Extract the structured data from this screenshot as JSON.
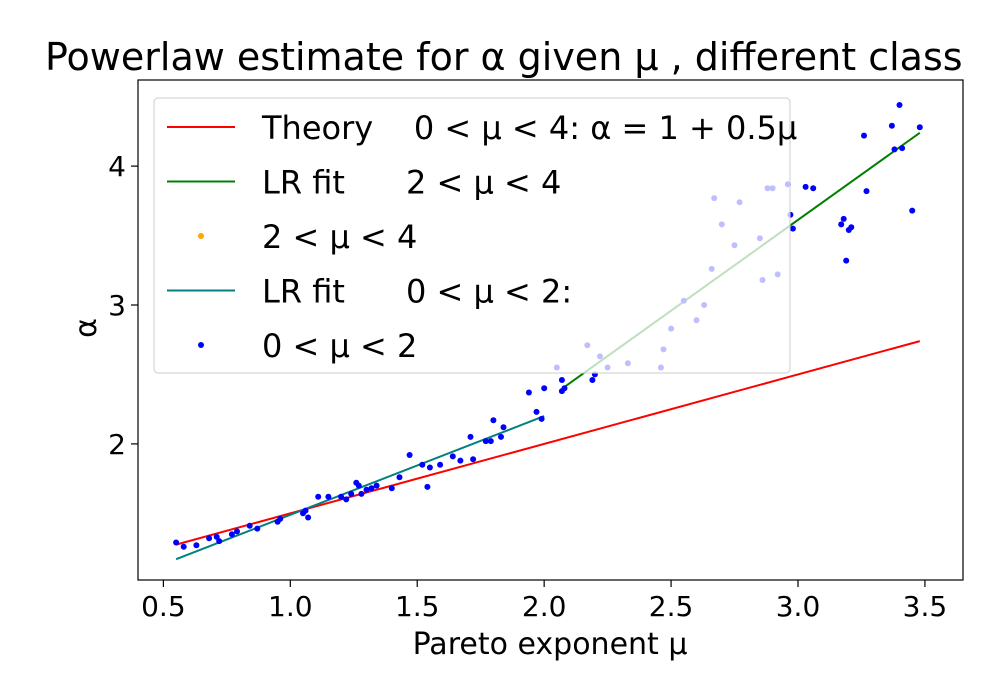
{
  "chart_data": {
    "type": "scatter",
    "title": "Powerlaw estimate for α given μ , different class",
    "xlabel": "Pareto exponent μ",
    "ylabel": "α",
    "xlim": [
      0.4,
      3.65
    ],
    "ylim": [
      1.02,
      4.62
    ],
    "xticks": [
      "0.5",
      "1.0",
      "1.5",
      "2.0",
      "2.5",
      "3.0",
      "3.5"
    ],
    "xtick_values": [
      0.5,
      1.0,
      1.5,
      2.0,
      2.5,
      3.0,
      3.5
    ],
    "yticks": [
      "2",
      "3",
      "4"
    ],
    "ytick_values": [
      2,
      3,
      4
    ],
    "legend_position": "upper-left",
    "series": [
      {
        "name": "Theory    0 < μ < 4: α = 1 + 0.5μ",
        "kind": "line",
        "color": "#ff0000",
        "x": [
          0.55,
          3.48
        ],
        "y": [
          1.275,
          2.74
        ]
      },
      {
        "name": "LR fit      2 < μ < 4",
        "kind": "line",
        "color": "#008000",
        "x": [
          2.08,
          3.48
        ],
        "y": [
          2.41,
          4.24
        ]
      },
      {
        "name": "2 < μ < 4",
        "kind": "scatter",
        "color": "#0000ff",
        "legend_marker_color": "#ffa500",
        "x": [
          2.05,
          2.07,
          2.08,
          2.17,
          2.2,
          2.22,
          2.25,
          2.33,
          2.46,
          2.47,
          2.5,
          2.55,
          2.6,
          2.63,
          2.66,
          2.67,
          2.7,
          2.75,
          2.77,
          2.85,
          2.86,
          2.88,
          2.9,
          2.92,
          2.96,
          2.97,
          2.98,
          3.03,
          3.06,
          3.17,
          3.18,
          3.19,
          3.2,
          3.21,
          3.26,
          3.27,
          3.37,
          3.38,
          3.4,
          3.41,
          3.45,
          3.48
        ],
        "y": [
          2.55,
          2.46,
          2.4,
          2.71,
          2.5,
          2.63,
          2.55,
          2.58,
          2.55,
          2.68,
          2.83,
          3.03,
          2.89,
          3.0,
          3.26,
          3.77,
          3.58,
          3.43,
          3.74,
          3.48,
          3.18,
          3.84,
          3.84,
          3.22,
          3.87,
          3.65,
          3.55,
          3.85,
          3.84,
          3.58,
          3.62,
          3.32,
          3.54,
          3.56,
          4.22,
          3.82,
          4.29,
          4.12,
          4.44,
          4.13,
          3.68,
          4.28
        ]
      },
      {
        "name": "LR fit      0 < μ < 2:",
        "kind": "line",
        "color": "#008080",
        "x": [
          0.55,
          2.0
        ],
        "y": [
          1.17,
          2.2
        ]
      },
      {
        "name": "0 < μ < 2",
        "kind": "scatter",
        "color": "#0000ff",
        "x": [
          0.55,
          0.58,
          0.63,
          0.68,
          0.71,
          0.72,
          0.77,
          0.79,
          0.84,
          0.87,
          0.95,
          0.96,
          1.05,
          1.06,
          1.07,
          1.11,
          1.15,
          1.2,
          1.22,
          1.24,
          1.26,
          1.27,
          1.28,
          1.3,
          1.32,
          1.34,
          1.4,
          1.43,
          1.47,
          1.52,
          1.54,
          1.55,
          1.59,
          1.64,
          1.67,
          1.71,
          1.72,
          1.77,
          1.79,
          1.8,
          1.83,
          1.84,
          1.94,
          1.97,
          1.99,
          2.0,
          2.07,
          2.19
        ],
        "y": [
          1.29,
          1.26,
          1.27,
          1.32,
          1.33,
          1.3,
          1.35,
          1.37,
          1.41,
          1.39,
          1.44,
          1.46,
          1.5,
          1.52,
          1.47,
          1.62,
          1.62,
          1.62,
          1.6,
          1.64,
          1.72,
          1.7,
          1.64,
          1.67,
          1.68,
          1.7,
          1.68,
          1.76,
          1.92,
          1.85,
          1.69,
          1.83,
          1.85,
          1.91,
          1.88,
          2.05,
          1.89,
          2.02,
          2.02,
          2.17,
          2.05,
          2.12,
          2.37,
          2.23,
          2.18,
          2.4,
          2.38,
          2.46
        ]
      }
    ]
  }
}
